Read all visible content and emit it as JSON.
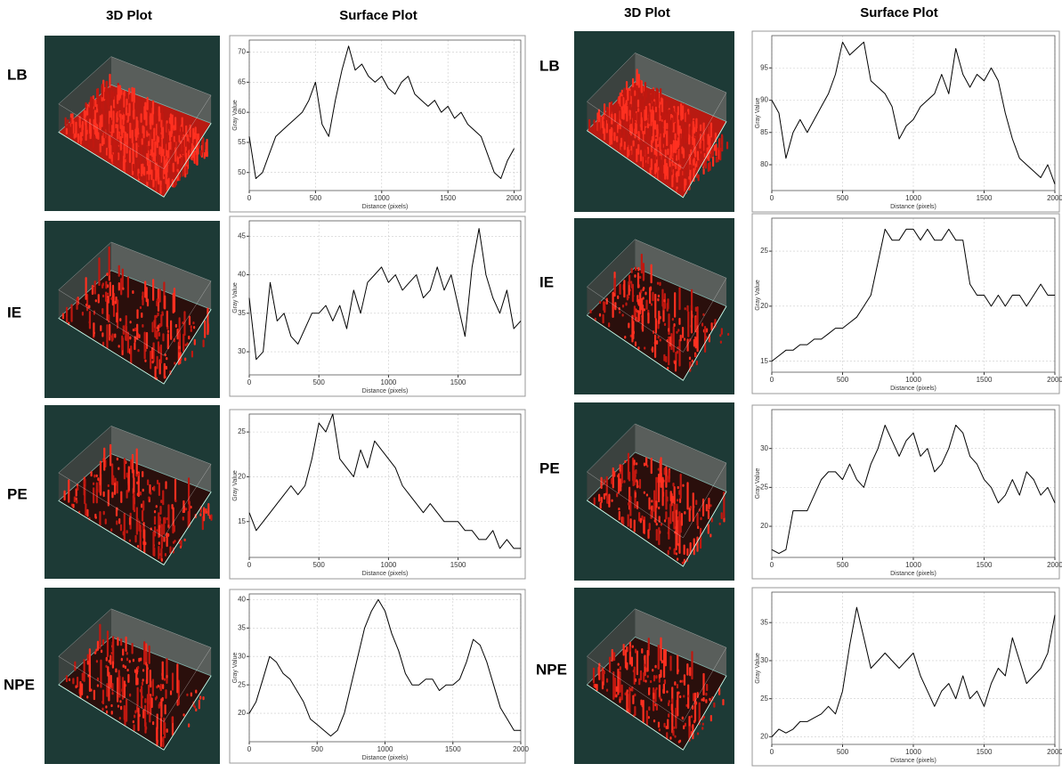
{
  "columns": [
    "3D Plot",
    "Surface Plot",
    "3D Plot",
    "Surface Plot"
  ],
  "rows_left": [
    "LB",
    "IE",
    "PE",
    "NPE"
  ],
  "rows_right": [
    "LB",
    "IE",
    "PE",
    "NPE"
  ],
  "chart_data": [
    {
      "type": "line",
      "ylabel": "Gray Value",
      "xlabel": "Distance (pixels)",
      "color": "#000000",
      "grid": true,
      "xlim": [
        0,
        2050
      ],
      "ylim": [
        47,
        72
      ],
      "xticks": [
        0,
        500,
        1000,
        1500,
        2000
      ],
      "yticks": [
        50,
        55,
        60,
        65,
        70
      ],
      "x": [
        0,
        50,
        100,
        150,
        200,
        250,
        300,
        350,
        400,
        450,
        500,
        550,
        600,
        650,
        700,
        750,
        800,
        850,
        900,
        950,
        1000,
        1050,
        1100,
        1150,
        1200,
        1250,
        1300,
        1350,
        1400,
        1450,
        1500,
        1550,
        1600,
        1650,
        1700,
        1750,
        1800,
        1850,
        1900,
        1950,
        2000
      ],
      "values": [
        56,
        49,
        50,
        53,
        56,
        57,
        58,
        59,
        60,
        62,
        65,
        58,
        56,
        62,
        67,
        71,
        67,
        68,
        66,
        65,
        66,
        64,
        63,
        65,
        66,
        63,
        62,
        61,
        62,
        60,
        61,
        59,
        60,
        58,
        57,
        56,
        53,
        50,
        49,
        52,
        54
      ]
    },
    {
      "type": "line",
      "ylabel": "Gray Value",
      "xlabel": "Distance (pixels)",
      "color": "#000000",
      "grid": true,
      "xlim": [
        0,
        1950
      ],
      "ylim": [
        27,
        47
      ],
      "xticks": [
        0,
        500,
        1000,
        1500
      ],
      "yticks": [
        30,
        35,
        40,
        45
      ],
      "x": [
        0,
        50,
        100,
        150,
        200,
        250,
        300,
        350,
        400,
        450,
        500,
        550,
        600,
        650,
        700,
        750,
        800,
        850,
        900,
        950,
        1000,
        1050,
        1100,
        1150,
        1200,
        1250,
        1300,
        1350,
        1400,
        1450,
        1500,
        1550,
        1600,
        1650,
        1700,
        1750,
        1800,
        1850,
        1900,
        1950
      ],
      "values": [
        37,
        29,
        30,
        39,
        34,
        35,
        32,
        31,
        33,
        35,
        35,
        36,
        34,
        36,
        33,
        38,
        35,
        39,
        40,
        41,
        39,
        40,
        38,
        39,
        40,
        37,
        38,
        41,
        38,
        40,
        36,
        32,
        41,
        46,
        40,
        37,
        35,
        38,
        33,
        34
      ]
    },
    {
      "type": "line",
      "ylabel": "Gray Value",
      "xlabel": "Distance (pixels)",
      "color": "#000000",
      "grid": true,
      "xlim": [
        0,
        1950
      ],
      "ylim": [
        11,
        27
      ],
      "xticks": [
        0,
        500,
        1000,
        1500
      ],
      "yticks": [
        15,
        20,
        25
      ],
      "x": [
        0,
        50,
        100,
        150,
        200,
        250,
        300,
        350,
        400,
        450,
        500,
        550,
        600,
        650,
        700,
        750,
        800,
        850,
        900,
        950,
        1000,
        1050,
        1100,
        1150,
        1200,
        1250,
        1300,
        1350,
        1400,
        1450,
        1500,
        1550,
        1600,
        1650,
        1700,
        1750,
        1800,
        1850,
        1900,
        1950
      ],
      "values": [
        16,
        14,
        15,
        16,
        17,
        18,
        19,
        18,
        19,
        22,
        26,
        25,
        27,
        22,
        21,
        20,
        23,
        21,
        24,
        23,
        22,
        21,
        19,
        18,
        17,
        16,
        17,
        16,
        15,
        15,
        15,
        14,
        14,
        13,
        13,
        14,
        12,
        13,
        12,
        12
      ]
    },
    {
      "type": "line",
      "ylabel": "Gray Value",
      "xlabel": "Distance (pixels)",
      "color": "#000000",
      "grid": true,
      "xlim": [
        0,
        2000
      ],
      "ylim": [
        15,
        41
      ],
      "xticks": [
        0,
        500,
        1000,
        1500,
        2000
      ],
      "yticks": [
        20,
        25,
        30,
        35,
        40
      ],
      "x": [
        0,
        50,
        100,
        150,
        200,
        250,
        300,
        350,
        400,
        450,
        500,
        550,
        600,
        650,
        700,
        750,
        800,
        850,
        900,
        950,
        1000,
        1050,
        1100,
        1150,
        1200,
        1250,
        1300,
        1350,
        1400,
        1450,
        1500,
        1550,
        1600,
        1650,
        1700,
        1750,
        1800,
        1850,
        1900,
        1950,
        2000
      ],
      "values": [
        20,
        22,
        26,
        30,
        29,
        27,
        26,
        24,
        22,
        19,
        18,
        17,
        16,
        17,
        20,
        25,
        30,
        35,
        38,
        40,
        38,
        34,
        31,
        27,
        25,
        25,
        26,
        26,
        24,
        25,
        25,
        26,
        29,
        33,
        32,
        29,
        25,
        21,
        19,
        17,
        17
      ]
    },
    {
      "type": "line",
      "ylabel": "Gray Value",
      "xlabel": "Distance (pixels)",
      "color": "#000000",
      "grid": true,
      "xlim": [
        0,
        2000
      ],
      "ylim": [
        76,
        100
      ],
      "xticks": [
        0,
        500,
        1000,
        1500,
        2000
      ],
      "yticks": [
        80,
        85,
        90,
        95
      ],
      "x": [
        0,
        50,
        100,
        150,
        200,
        250,
        300,
        350,
        400,
        450,
        500,
        550,
        600,
        650,
        700,
        750,
        800,
        850,
        900,
        950,
        1000,
        1050,
        1100,
        1150,
        1200,
        1250,
        1300,
        1350,
        1400,
        1450,
        1500,
        1550,
        1600,
        1650,
        1700,
        1750,
        1800,
        1850,
        1900,
        1950,
        2000
      ],
      "values": [
        90,
        88,
        81,
        85,
        87,
        85,
        87,
        89,
        91,
        94,
        99,
        97,
        98,
        99,
        93,
        92,
        91,
        89,
        84,
        86,
        87,
        89,
        90,
        91,
        94,
        91,
        98,
        94,
        92,
        94,
        93,
        95,
        93,
        88,
        84,
        81,
        80,
        79,
        78,
        80,
        77
      ]
    },
    {
      "type": "line",
      "ylabel": "Gray Value",
      "xlabel": "Distance (pixels)",
      "color": "#000000",
      "grid": true,
      "xlim": [
        0,
        2000
      ],
      "ylim": [
        14,
        28
      ],
      "xticks": [
        0,
        500,
        1000,
        1500,
        2000
      ],
      "yticks": [
        15,
        20,
        25
      ],
      "x": [
        0,
        50,
        100,
        150,
        200,
        250,
        300,
        350,
        400,
        450,
        500,
        550,
        600,
        650,
        700,
        750,
        800,
        850,
        900,
        950,
        1000,
        1050,
        1100,
        1150,
        1200,
        1250,
        1300,
        1350,
        1400,
        1450,
        1500,
        1550,
        1600,
        1650,
        1700,
        1750,
        1800,
        1850,
        1900,
        1950,
        2000
      ],
      "values": [
        15,
        15.5,
        16,
        16,
        16.5,
        16.5,
        17,
        17,
        17.5,
        18,
        18,
        18.5,
        19,
        20,
        21,
        24,
        27,
        26,
        26,
        27,
        27,
        26,
        27,
        26,
        26,
        27,
        26,
        26,
        22,
        21,
        21,
        20,
        21,
        20,
        21,
        21,
        20,
        21,
        22,
        21,
        21
      ]
    },
    {
      "type": "line",
      "ylabel": "Gray Value",
      "xlabel": "Distance (pixels)",
      "color": "#000000",
      "grid": true,
      "xlim": [
        0,
        2000
      ],
      "ylim": [
        16,
        35
      ],
      "xticks": [
        0,
        500,
        1000,
        1500,
        2000
      ],
      "yticks": [
        20,
        25,
        30
      ],
      "x": [
        0,
        50,
        100,
        150,
        200,
        250,
        300,
        350,
        400,
        450,
        500,
        550,
        600,
        650,
        700,
        750,
        800,
        850,
        900,
        950,
        1000,
        1050,
        1100,
        1150,
        1200,
        1250,
        1300,
        1350,
        1400,
        1450,
        1500,
        1550,
        1600,
        1650,
        1700,
        1750,
        1800,
        1850,
        1900,
        1950,
        2000
      ],
      "values": [
        17,
        16.5,
        17,
        22,
        22,
        22,
        24,
        26,
        27,
        27,
        26,
        28,
        26,
        25,
        28,
        30,
        33,
        31,
        29,
        31,
        32,
        29,
        30,
        27,
        28,
        30,
        33,
        32,
        29,
        28,
        26,
        25,
        23,
        24,
        26,
        24,
        27,
        26,
        24,
        25,
        23
      ]
    },
    {
      "type": "line",
      "ylabel": "Gray Value",
      "xlabel": "Distance (pixels)",
      "color": "#000000",
      "grid": true,
      "xlim": [
        0,
        2000
      ],
      "ylim": [
        19,
        39
      ],
      "xticks": [
        0,
        500,
        1000,
        1500,
        2000
      ],
      "yticks": [
        20,
        25,
        30,
        35
      ],
      "x": [
        0,
        50,
        100,
        150,
        200,
        250,
        300,
        350,
        400,
        450,
        500,
        550,
        600,
        650,
        700,
        750,
        800,
        850,
        900,
        950,
        1000,
        1050,
        1100,
        1150,
        1200,
        1250,
        1300,
        1350,
        1400,
        1450,
        1500,
        1550,
        1600,
        1650,
        1700,
        1750,
        1800,
        1850,
        1900,
        1950,
        2000
      ],
      "values": [
        20,
        21,
        20.5,
        21,
        22,
        22,
        22.5,
        23,
        24,
        23,
        26,
        32,
        37,
        33,
        29,
        30,
        31,
        30,
        29,
        30,
        31,
        28,
        26,
        24,
        26,
        27,
        25,
        28,
        25,
        26,
        24,
        27,
        29,
        28,
        33,
        30,
        27,
        28,
        29,
        31,
        36
      ]
    }
  ]
}
